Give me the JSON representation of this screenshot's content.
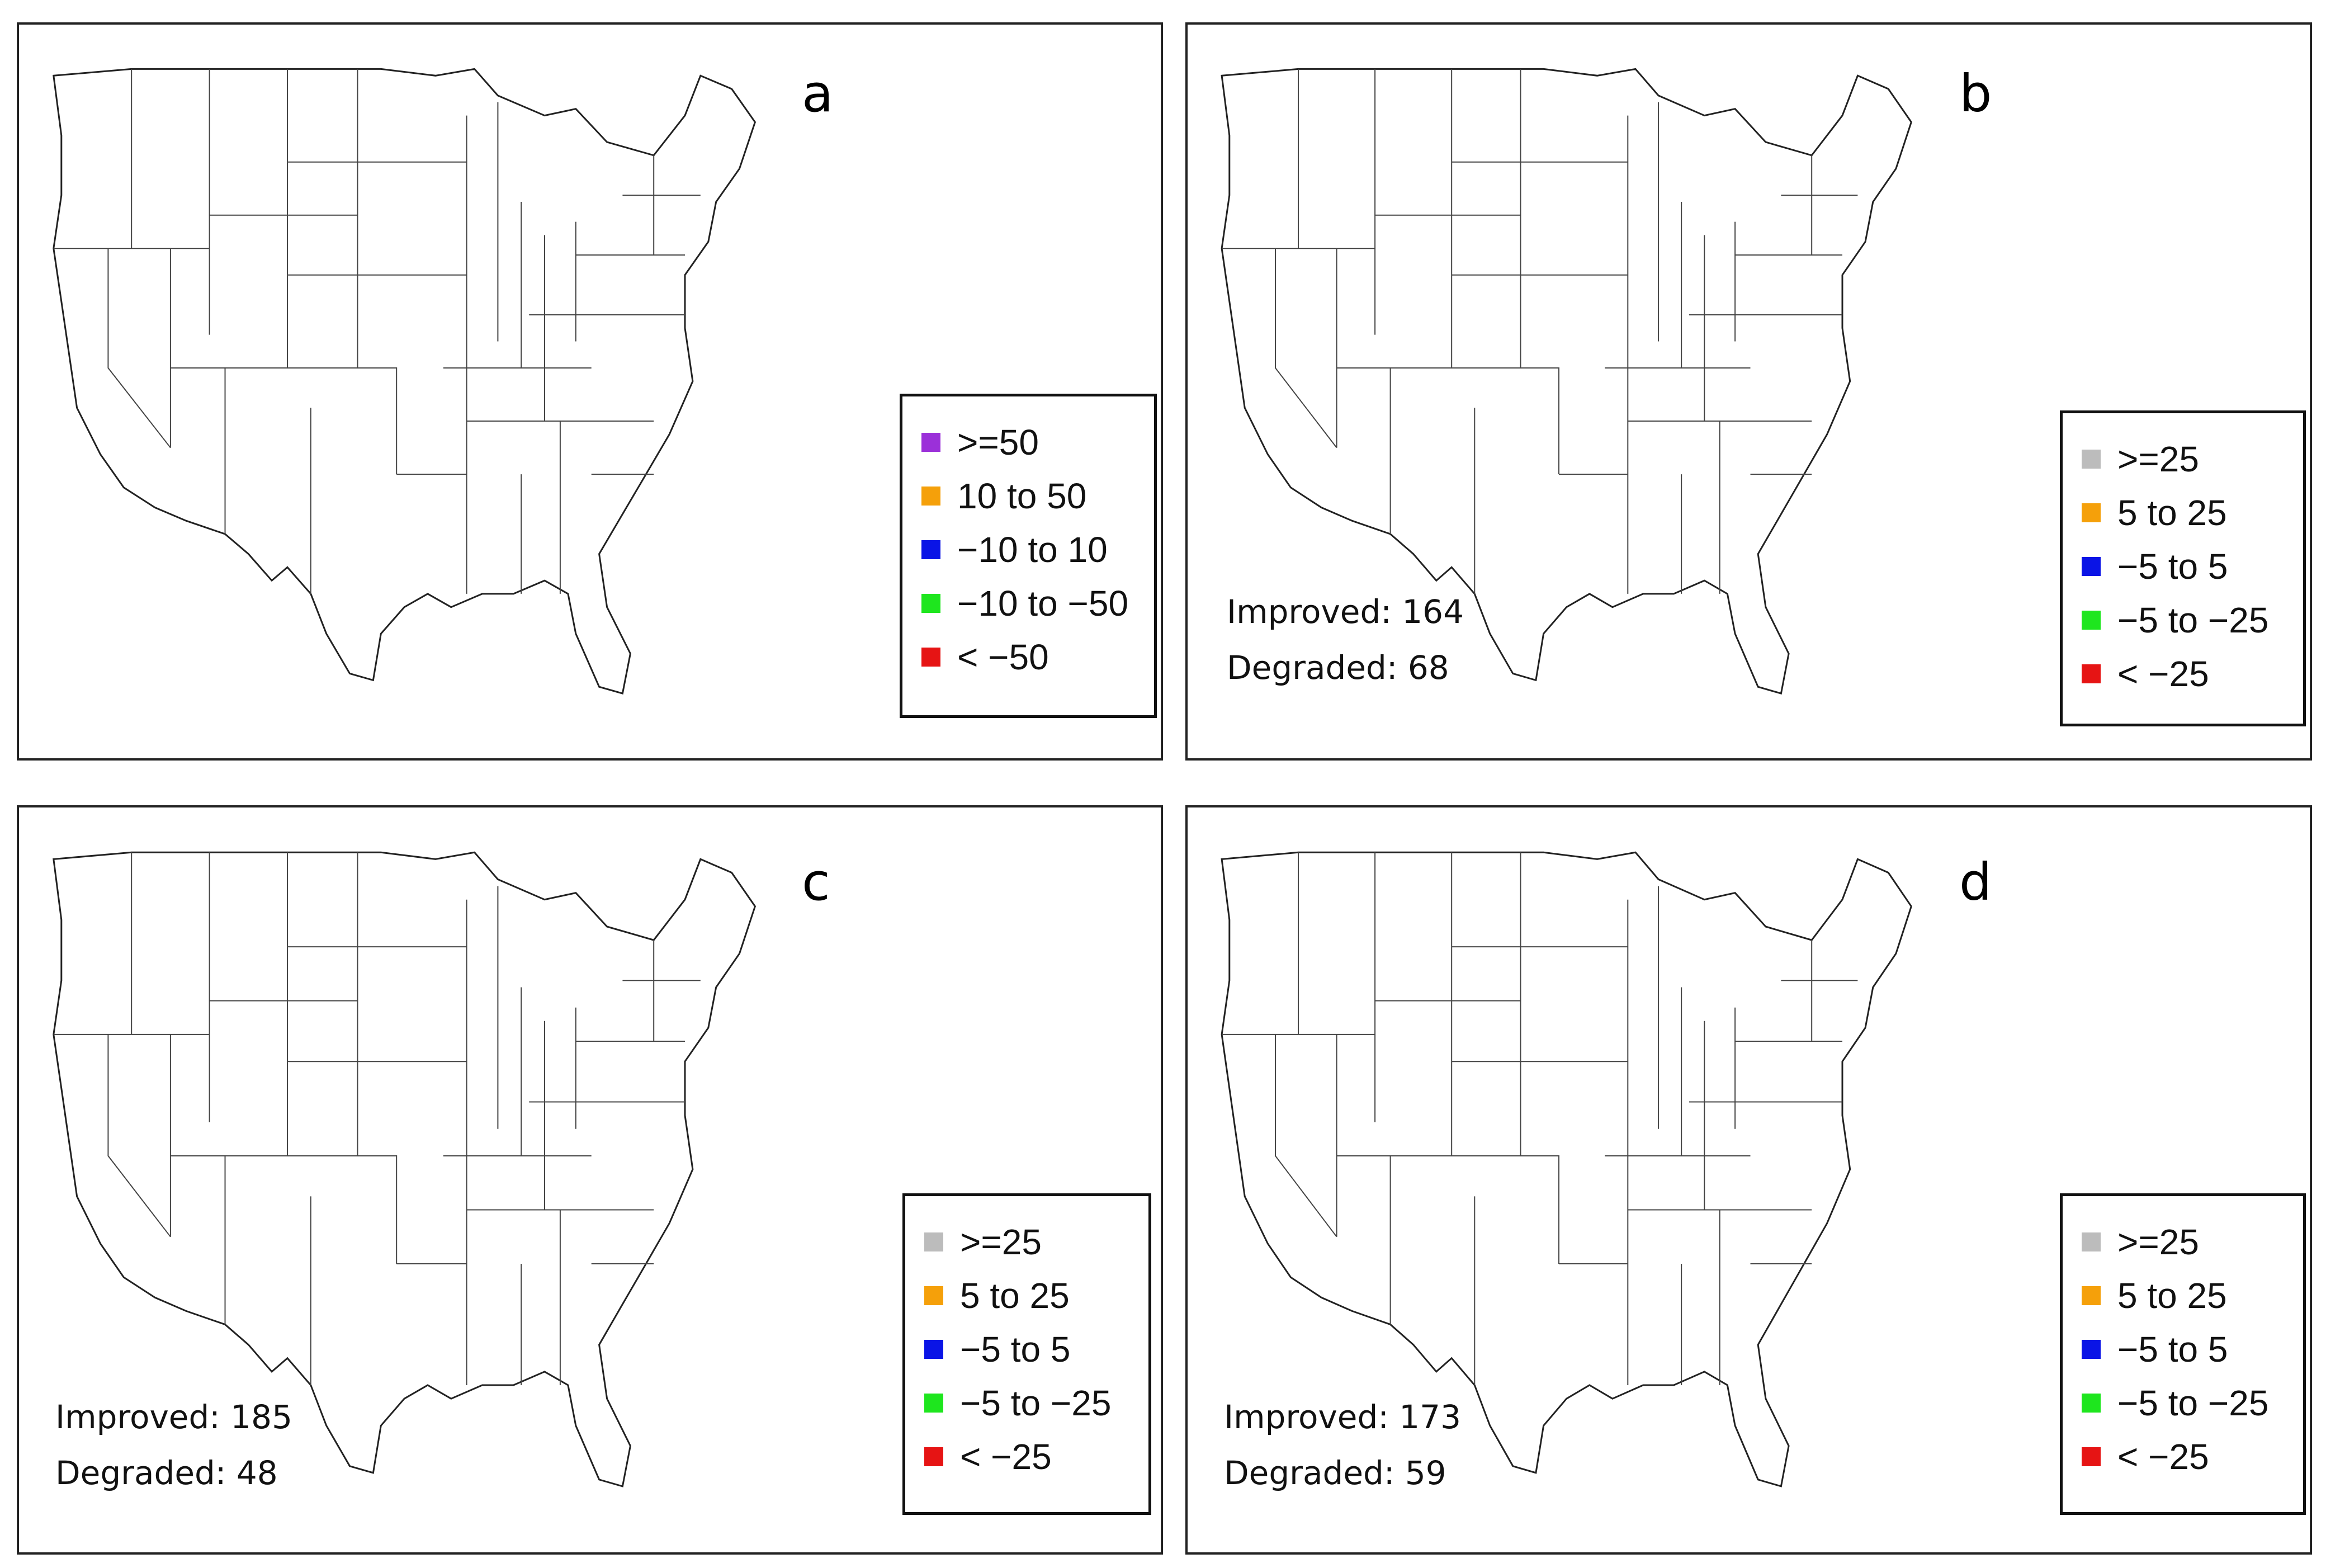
{
  "panels": [
    {
      "letter": "a",
      "legend": [
        {
          "label": ">=50",
          "color": "#9b30d9"
        },
        {
          "label": "10 to 50",
          "color": "#f5a00a"
        },
        {
          "label": "−10 to 10",
          "color": "#0a14e6"
        },
        {
          "label": "−10 to −50",
          "color": "#1ee61e"
        },
        {
          "label": "< −50",
          "color": "#e61414"
        }
      ],
      "improved": null,
      "degraded": null
    },
    {
      "letter": "b",
      "legend": [
        {
          "label": ">=25",
          "color": "#bcbcbc"
        },
        {
          "label": "5 to 25",
          "color": "#f5a00a"
        },
        {
          "label": "−5 to 5",
          "color": "#0a14e6"
        },
        {
          "label": "−5 to −25",
          "color": "#1ee61e"
        },
        {
          "label": "< −25",
          "color": "#e61414"
        }
      ],
      "improved": "Improved: 164",
      "degraded": "Degraded: 68"
    },
    {
      "letter": "c",
      "legend": [
        {
          "label": ">=25",
          "color": "#bcbcbc"
        },
        {
          "label": "5 to 25",
          "color": "#f5a00a"
        },
        {
          "label": "−5 to 5",
          "color": "#0a14e6"
        },
        {
          "label": "−5 to −25",
          "color": "#1ee61e"
        },
        {
          "label": "< −25",
          "color": "#e61414"
        }
      ],
      "improved": "Improved: 185",
      "degraded": "Degraded: 48"
    },
    {
      "letter": "d",
      "legend": [
        {
          "label": ">=25",
          "color": "#bcbcbc"
        },
        {
          "label": "5 to 25",
          "color": "#f5a00a"
        },
        {
          "label": "−5 to 5",
          "color": "#0a14e6"
        },
        {
          "label": "−5 to −25",
          "color": "#1ee61e"
        },
        {
          "label": "< −25",
          "color": "#e61414"
        }
      ],
      "improved": "Improved: 173",
      "degraded": "Degraded: 59"
    }
  ]
}
